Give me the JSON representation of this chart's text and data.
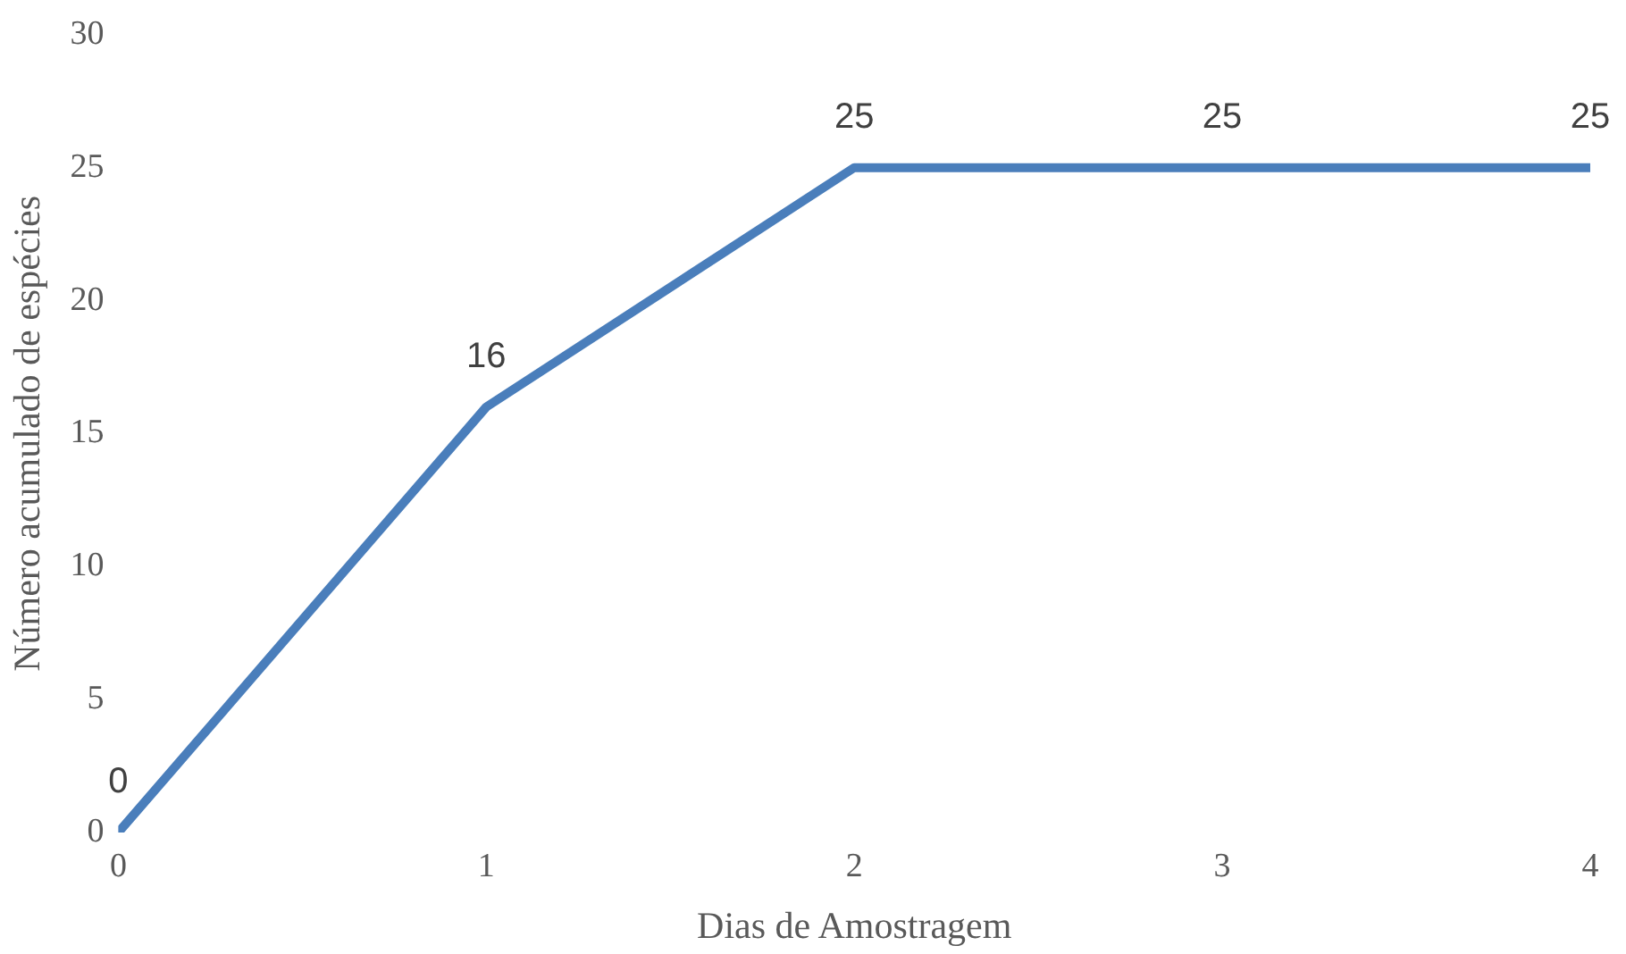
{
  "chart_data": {
    "type": "line",
    "xlabel": "Dias de Amostragem",
    "ylabel": "Número acumulado de espécies",
    "x": [
      0,
      1,
      2,
      3,
      4
    ],
    "series": [
      {
        "color": "#4a7ebb",
        "values": [
          0,
          16,
          25,
          25,
          25
        ]
      }
    ],
    "xlim": [
      0,
      4
    ],
    "xticks": [
      0,
      1,
      2,
      3,
      4
    ],
    "ylim": [
      0,
      30
    ],
    "yticks": [
      0,
      5,
      10,
      15,
      20,
      25,
      30
    ],
    "grid": false,
    "legend": false,
    "marker": "none",
    "line_style": "solid",
    "data_labels": true
  }
}
